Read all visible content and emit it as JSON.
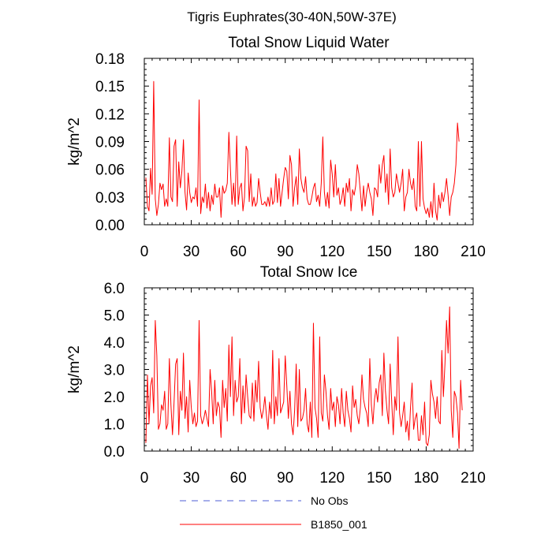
{
  "figure_title": "Tigris Euphrates(30-40N,50W-37E)",
  "legend": [
    {
      "label": "No Obs",
      "color": "#4c5cd6",
      "style": "dashed"
    },
    {
      "label": "B1850_001",
      "color": "#ff0000",
      "style": "solid"
    }
  ],
  "chart_data": [
    {
      "type": "line",
      "title": "Total Snow Liquid Water",
      "xlabel": "",
      "ylabel": "kg/m^2",
      "xlim": [
        0,
        210
      ],
      "ylim": [
        0,
        0.18
      ],
      "xticks": [
        0,
        30,
        60,
        90,
        120,
        150,
        180,
        210
      ],
      "yticks": [
        0,
        0.03,
        0.06,
        0.09,
        0.12,
        0.15,
        0.18
      ],
      "xtick_labels": [
        "0",
        "30",
        "60",
        "90",
        "120",
        "150",
        "180",
        "210"
      ],
      "ytick_labels": [
        "0.00",
        "0.03",
        "0.06",
        "0.09",
        "0.12",
        "0.15",
        "0.18"
      ],
      "series": [
        {
          "name": "B1850_001",
          "color": "#ff0000",
          "x_start": 1,
          "values": [
            0.051,
            0.02,
            0.015,
            0.061,
            0.033,
            0.155,
            0.028,
            0.01,
            0.022,
            0.045,
            0.038,
            0.044,
            0.02,
            0.028,
            0.02,
            0.094,
            0.03,
            0.025,
            0.085,
            0.092,
            0.02,
            0.068,
            0.04,
            0.058,
            0.092,
            0.035,
            0.016,
            0.056,
            0.035,
            0.024,
            0.03,
            0.028,
            0.04,
            0.02,
            0.135,
            0.012,
            0.03,
            0.024,
            0.044,
            0.018,
            0.035,
            0.015,
            0.032,
            0.022,
            0.044,
            0.03,
            0.03,
            0.04,
            0.008,
            0.042,
            0.034,
            0.037,
            0.045,
            0.1,
            0.06,
            0.022,
            0.045,
            0.02,
            0.096,
            0.022,
            0.04,
            0.045,
            0.015,
            0.03,
            0.085,
            0.08,
            0.025,
            0.055,
            0.02,
            0.03,
            0.02,
            0.024,
            0.05,
            0.035,
            0.022,
            0.022,
            0.025,
            0.02,
            0.03,
            0.02,
            0.04,
            0.022,
            0.026,
            0.055,
            0.024,
            0.05,
            0.02,
            0.035,
            0.05,
            0.062,
            0.058,
            0.028,
            0.075,
            0.065,
            0.02,
            0.04,
            0.052,
            0.022,
            0.082,
            0.05,
            0.04,
            0.035,
            0.052,
            0.028,
            0.022,
            0.022,
            0.03,
            0.04,
            0.045,
            0.025,
            0.032,
            0.02,
            0.045,
            0.095,
            0.035,
            0.02,
            0.035,
            0.018,
            0.07,
            0.055,
            0.03,
            0.065,
            0.032,
            0.04,
            0.022,
            0.028,
            0.04,
            0.02,
            0.045,
            0.035,
            0.05,
            0.015,
            0.038,
            0.032,
            0.042,
            0.065,
            0.055,
            0.035,
            0.015,
            0.042,
            0.02,
            0.035,
            0.045,
            0.035,
            0.028,
            0.01,
            0.04,
            0.038,
            0.03,
            0.065,
            0.045,
            0.065,
            0.075,
            0.035,
            0.055,
            0.022,
            0.082,
            0.04,
            0.03,
            0.035,
            0.055,
            0.045,
            0.035,
            0.045,
            0.06,
            0.015,
            0.03,
            0.035,
            0.06,
            0.045,
            0.038,
            0.05,
            0.02,
            0.015,
            0.09,
            0.02,
            0.09,
            0.028,
            0.018,
            0.012,
            0.018,
            0.008,
            0.025,
            0.008,
            0.045,
            0.015,
            0.005,
            0.032,
            0.018,
            0.035,
            0.025,
            0.035,
            0.05,
            0.032,
            0.01,
            0.03,
            0.035,
            0.045,
            0.065,
            0.11,
            0.09
          ]
        }
      ]
    },
    {
      "type": "line",
      "title": "Total Snow Ice",
      "xlabel": "",
      "ylabel": "kg/m^2",
      "xlim": [
        0,
        210
      ],
      "ylim": [
        0,
        6
      ],
      "xticks": [
        0,
        30,
        60,
        90,
        120,
        150,
        180,
        210
      ],
      "yticks": [
        0,
        1,
        2,
        3,
        4,
        5,
        6
      ],
      "xtick_labels": [
        "0",
        "30",
        "60",
        "90",
        "120",
        "150",
        "180",
        "210"
      ],
      "ytick_labels": [
        "0.0",
        "1.0",
        "2.0",
        "3.0",
        "4.0",
        "5.0",
        "6.0"
      ],
      "series": [
        {
          "name": "B1850_001",
          "color": "#ff0000",
          "x_start": 1,
          "values": [
            0.3,
            2.8,
            1.0,
            2.4,
            2.7,
            1.4,
            4.8,
            3.5,
            0.8,
            1.0,
            1.7,
            1.5,
            2.2,
            0.8,
            1.0,
            3.4,
            1.7,
            0.6,
            1.8,
            3.2,
            3.4,
            0.6,
            2.2,
            1.5,
            3.6,
            1.2,
            2.0,
            0.7,
            2.6,
            1.6,
            1.0,
            1.4,
            0.9,
            1.1,
            4.8,
            1.3,
            1.0,
            1.2,
            1.5,
            1.2,
            0.9,
            3.0,
            2.2,
            1.0,
            2.6,
            1.3,
            1.8,
            1.6,
            0.5,
            2.6,
            1.6,
            2.3,
            1.1,
            3.9,
            2.0,
            4.2,
            1.3,
            2.6,
            1.8,
            2.0,
            3.4,
            1.0,
            2.4,
            1.4,
            2.8,
            2.0,
            1.3,
            1.2,
            2.5,
            1.1,
            2.6,
            1.8,
            3.3,
            1.6,
            1.2,
            1.5,
            2.0,
            1.3,
            0.8,
            1.8,
            1.2,
            3.7,
            1.0,
            2.0,
            1.3,
            3.4,
            1.4,
            1.6,
            1.8,
            3.5,
            2.4,
            1.2,
            2.2,
            1.0,
            0.6,
            1.5,
            3.2,
            0.9,
            3.0,
            1.1,
            1.2,
            1.5,
            2.3,
            1.0,
            0.7,
            1.8,
            0.5,
            4.7,
            1.6,
            1.2,
            0.5,
            4.2,
            1.4,
            1.1,
            2.8,
            2.2,
            1.3,
            0.8,
            2.3,
            1.5,
            1.8,
            0.9,
            2.0,
            1.7,
            1.0,
            2.3,
            1.4,
            0.9,
            2.2,
            1.5,
            1.2,
            0.7,
            2.4,
            1.6,
            1.9,
            1.3,
            1.0,
            1.6,
            2.8,
            1.9,
            1.6,
            1.4,
            0.9,
            3.4,
            1.7,
            1.0,
            1.9,
            2.3,
            1.8,
            2.5,
            2.8,
            1.3,
            3.6,
            2.2,
            1.5,
            1.0,
            3.2,
            1.8,
            0.6,
            2.0,
            1.5,
            4.2,
            1.4,
            0.9,
            1.3,
            1.8,
            0.7,
            1.1,
            0.4,
            1.6,
            2.5,
            0.8,
            1.2,
            1.4,
            0.4,
            0.4,
            1.3,
            0.6,
            1.8,
            0.3,
            0.2,
            0.6,
            2.6,
            2.1,
            1.8,
            1.2,
            2.0,
            1.1,
            1.0,
            3.7,
            2.0,
            3.2,
            4.8,
            3.6,
            5.3,
            1.5,
            0.5,
            2.2,
            2.0,
            1.4,
            0.1,
            2.6,
            1.5
          ]
        }
      ]
    }
  ]
}
